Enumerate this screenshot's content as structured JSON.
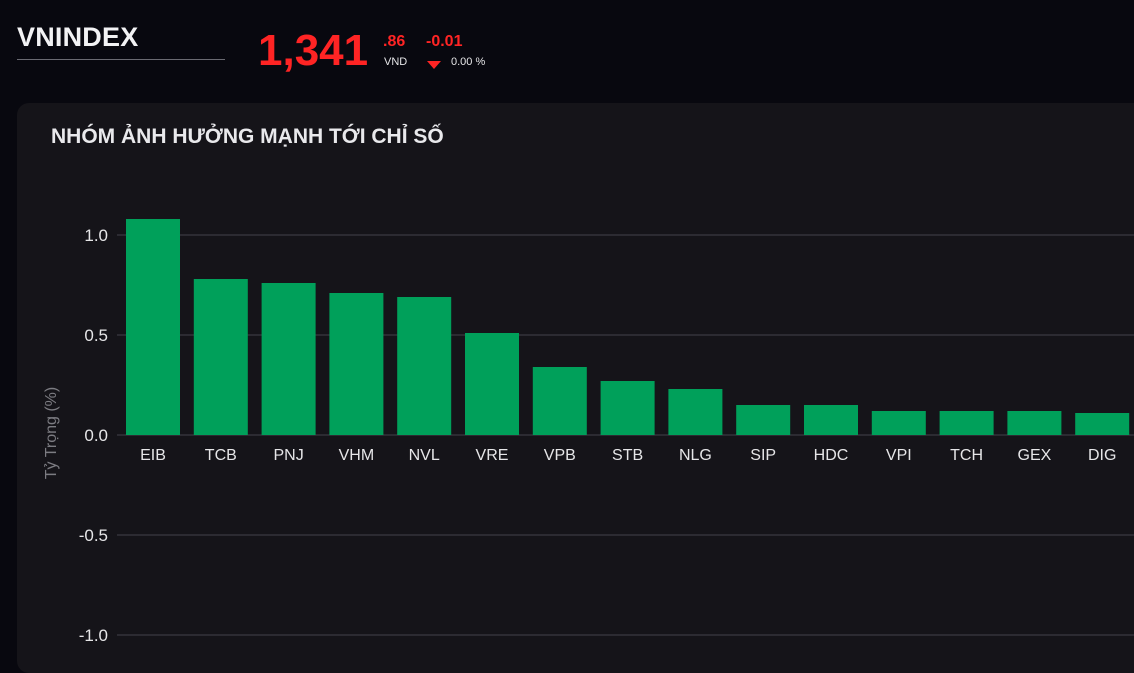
{
  "header": {
    "index_name": "VNINDEX",
    "price_main": "1,341",
    "price_decimal": ".86",
    "price_unit": "VND",
    "change": "-0.01",
    "change_percent": "0.00 %",
    "change_direction": "down",
    "down_color": "#ff2424"
  },
  "panel": {
    "title": "NHÓM ẢNH HƯỞNG MẠNH TỚI CHỈ SỐ"
  },
  "chart_data": {
    "type": "bar",
    "title": "NHÓM ẢNH HƯỞNG MẠNH TỚI CHỈ SỐ",
    "xlabel": "",
    "ylabel": "Tỷ Trọng (%)",
    "ylim": [
      -1.0,
      1.0
    ],
    "yticks": [
      1.0,
      0.5,
      0.0,
      -0.5,
      -1.0
    ],
    "ytick_labels": [
      "1.0",
      "0.5",
      "0.0",
      "-0.5",
      "-1.0"
    ],
    "grid": true,
    "bar_color": "#00a05a",
    "categories": [
      "EIB",
      "TCB",
      "PNJ",
      "VHM",
      "NVL",
      "VRE",
      "VPB",
      "STB",
      "NLG",
      "SIP",
      "HDC",
      "VPI",
      "TCH",
      "GEX",
      "DIG"
    ],
    "values": [
      1.08,
      0.78,
      0.76,
      0.71,
      0.69,
      0.51,
      0.34,
      0.27,
      0.23,
      0.15,
      0.15,
      0.12,
      0.12,
      0.12,
      0.11
    ]
  }
}
